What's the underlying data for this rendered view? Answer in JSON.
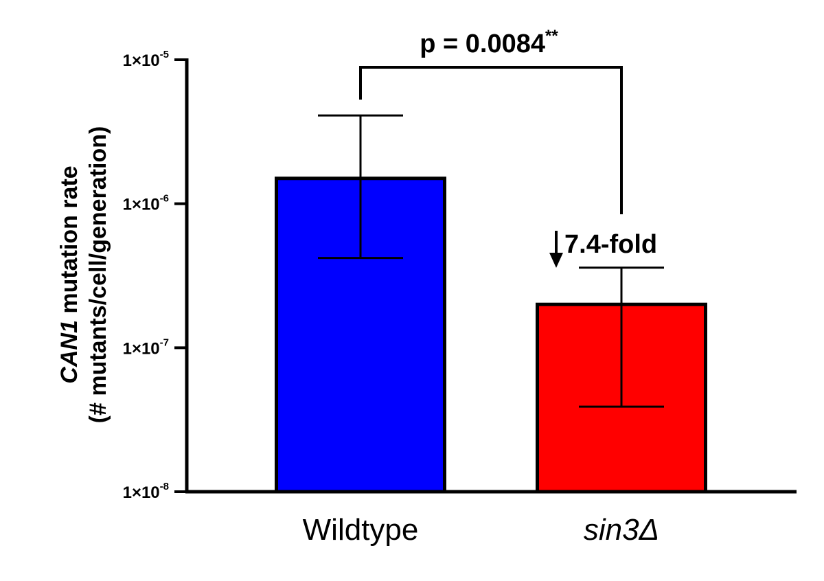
{
  "chart_data": {
    "type": "bar",
    "yscale": "log",
    "ylim": [
      1e-08,
      1e-05
    ],
    "yticks": [
      {
        "value": 1e-05,
        "base": "1×10",
        "exp": "-5"
      },
      {
        "value": 1e-06,
        "base": "1×10",
        "exp": "-6"
      },
      {
        "value": 1e-07,
        "base": "1×10",
        "exp": "-7"
      },
      {
        "value": 1e-08,
        "base": "1×10",
        "exp": "-8"
      }
    ],
    "ylabel_line1_italic": "CAN1",
    "ylabel_line1_rest": " mutation rate",
    "ylabel_line2": "(# mutants/cell/generation)",
    "categories": [
      "Wildtype",
      "sin3Δ"
    ],
    "category_italic": [
      false,
      true
    ],
    "values": [
      1.5e-06,
      2e-07
    ],
    "error_low": [
      4.2e-07,
      3.9e-08
    ],
    "error_high": [
      4.1e-06,
      3.6e-07
    ],
    "colors": [
      "#0000ff",
      "#ff0000"
    ],
    "annotations": {
      "pvalue_text": "p = 0.0084",
      "pvalue_stars": "**",
      "fold_text": "7.4-fold",
      "fold_arrow": "down-arrow"
    },
    "grid": false,
    "legend": "none"
  }
}
